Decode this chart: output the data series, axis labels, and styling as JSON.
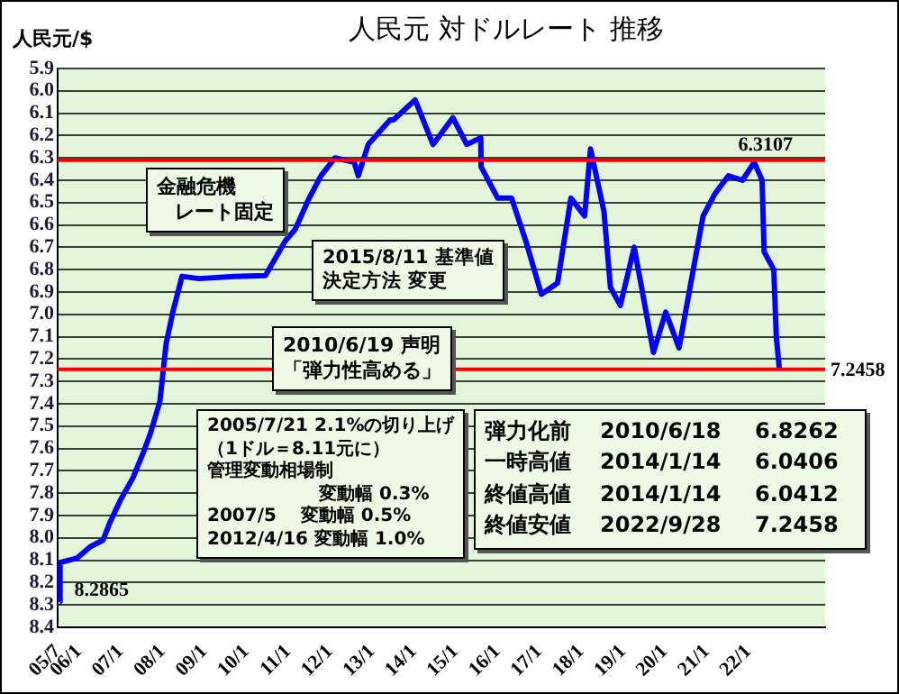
{
  "chart_data": {
    "type": "line",
    "title": "人民元 対ドルレート 推移",
    "ylabel": "人民元/$",
    "x": [
      "2005-07-21",
      "2005-07-22",
      "2005-12-20",
      "2006-04-10",
      "2006-08-01",
      "2006-10-01",
      "2007-01-01",
      "2007-04-20",
      "2007-07-25",
      "2007-09-20",
      "2007-12-10",
      "2008-02-03",
      "2008-04-01",
      "2008-06-20",
      "2008-11-15",
      "2009-09-20",
      "2010-06-18",
      "2010-12-10",
      "2011-03-05",
      "2011-07-05",
      "2011-10-15",
      "2012-02-15",
      "2012-08-01",
      "2012-09-05",
      "2012-12-01",
      "2013-06-10",
      "2013-07-10",
      "2014-01-14",
      "2014-06-20",
      "2014-12-10",
      "2015-04-10",
      "2015-08-10",
      "2015-08-13",
      "2016-01-05",
      "2016-05-05",
      "2016-09-05",
      "2017-01-20",
      "2017-06-10",
      "2017-10-05",
      "2018-02-01",
      "2018-03-25",
      "2018-07-20",
      "2018-09-15",
      "2018-12-10",
      "2019-04-10",
      "2019-07-05",
      "2019-09-25",
      "2020-01-10",
      "2020-05-05",
      "2020-12-01",
      "2021-03-15",
      "2021-07-10",
      "2021-11-10",
      "2022-02-20",
      "2022-04-30",
      "2022-05-18",
      "2022-08-10",
      "2022-09-01",
      "2022-09-28"
    ],
    "values": [
      8.2865,
      8.11,
      8.09,
      8.04,
      8.01,
      7.93,
      7.83,
      7.73,
      7.61,
      7.53,
      7.39,
      7.13,
      6.99,
      6.83,
      6.84,
      6.83,
      6.8262,
      6.67,
      6.62,
      6.48,
      6.38,
      6.3,
      6.32,
      6.38,
      6.24,
      6.13,
      6.13,
      6.0406,
      6.24,
      6.12,
      6.24,
      6.21,
      6.34,
      6.48,
      6.48,
      6.67,
      6.91,
      6.86,
      6.48,
      6.56,
      6.26,
      6.54,
      6.88,
      6.96,
      6.7,
      6.94,
      7.17,
      6.99,
      7.15,
      6.56,
      6.46,
      6.38,
      6.4,
      6.32,
      6.4,
      6.72,
      6.8,
      7.1,
      7.2458
    ],
    "color": "#0000ff",
    "marker": "none",
    "line_style": "solid",
    "legend": false,
    "grid": "y",
    "xlim": [
      "2005-07",
      "2023-11"
    ],
    "xticks": [
      {
        "value": "2005-07",
        "label": "05/7"
      },
      {
        "value": "2006-01",
        "label": "06/1"
      },
      {
        "value": "2007-01",
        "label": "07/1"
      },
      {
        "value": "2008-01",
        "label": "08/1"
      },
      {
        "value": "2009-01",
        "label": "09/1"
      },
      {
        "value": "2010-01",
        "label": "10/1"
      },
      {
        "value": "2011-01",
        "label": "11/1"
      },
      {
        "value": "2012-01",
        "label": "12/1"
      },
      {
        "value": "2013-01",
        "label": "13/1"
      },
      {
        "value": "2014-01",
        "label": "14/1"
      },
      {
        "value": "2015-01",
        "label": "15/1"
      },
      {
        "value": "2016-01",
        "label": "16/1"
      },
      {
        "value": "2017-01",
        "label": "17/1"
      },
      {
        "value": "2018-01",
        "label": "18/1"
      },
      {
        "value": "2019-01",
        "label": "19/1"
      },
      {
        "value": "2020-01",
        "label": "20/1"
      },
      {
        "value": "2021-01",
        "label": "21/1"
      },
      {
        "value": "2022-01",
        "label": "22/1"
      }
    ],
    "ylim": [
      8.4,
      5.9
    ],
    "yticks": [
      5.9,
      {
        "value": 6,
        "label": "6.0"
      },
      6.1,
      6.2,
      6.3,
      6.4,
      6.5,
      6.6,
      6.7,
      6.8,
      6.9,
      {
        "value": 7,
        "label": "7.0"
      },
      7.1,
      7.2,
      7.3,
      7.4,
      7.5,
      7.6,
      7.7,
      7.8,
      7.9,
      {
        "value": 8,
        "label": "8.0"
      },
      8.1,
      8.2,
      8.3,
      8.4
    ],
    "ref_lines": [
      {
        "axis": "y",
        "value": 6.3107,
        "label": "6.3107",
        "color": "#ff0000"
      },
      {
        "axis": "y",
        "value": 7.2458,
        "label": "7.2458",
        "color": "#ff0000"
      }
    ],
    "annotations": [
      "金融危機",
      "レート固定",
      "2015/8/11 基準値",
      "決定方法 変更",
      "2010/6/19 声明",
      "「弾力性高める」",
      "2005/7/21 2.1%の切り上げ",
      "（1ドル＝8.11元に）",
      "管理変動相場制",
      "変動幅 0.3%",
      "2007/5　 変動幅 0.5%",
      "2012/4/16 変動幅 1.0%",
      "弾力化前 2010/6/18 6.8262",
      "一時高値 2014/1/14 6.0406",
      "終値高値 2014/1/14 6.0412",
      "終値安値 2022/9/28 7.2458",
      {
        "text": "8.2865",
        "x": "2005-07-21",
        "y": 8.2865
      }
    ]
  }
}
